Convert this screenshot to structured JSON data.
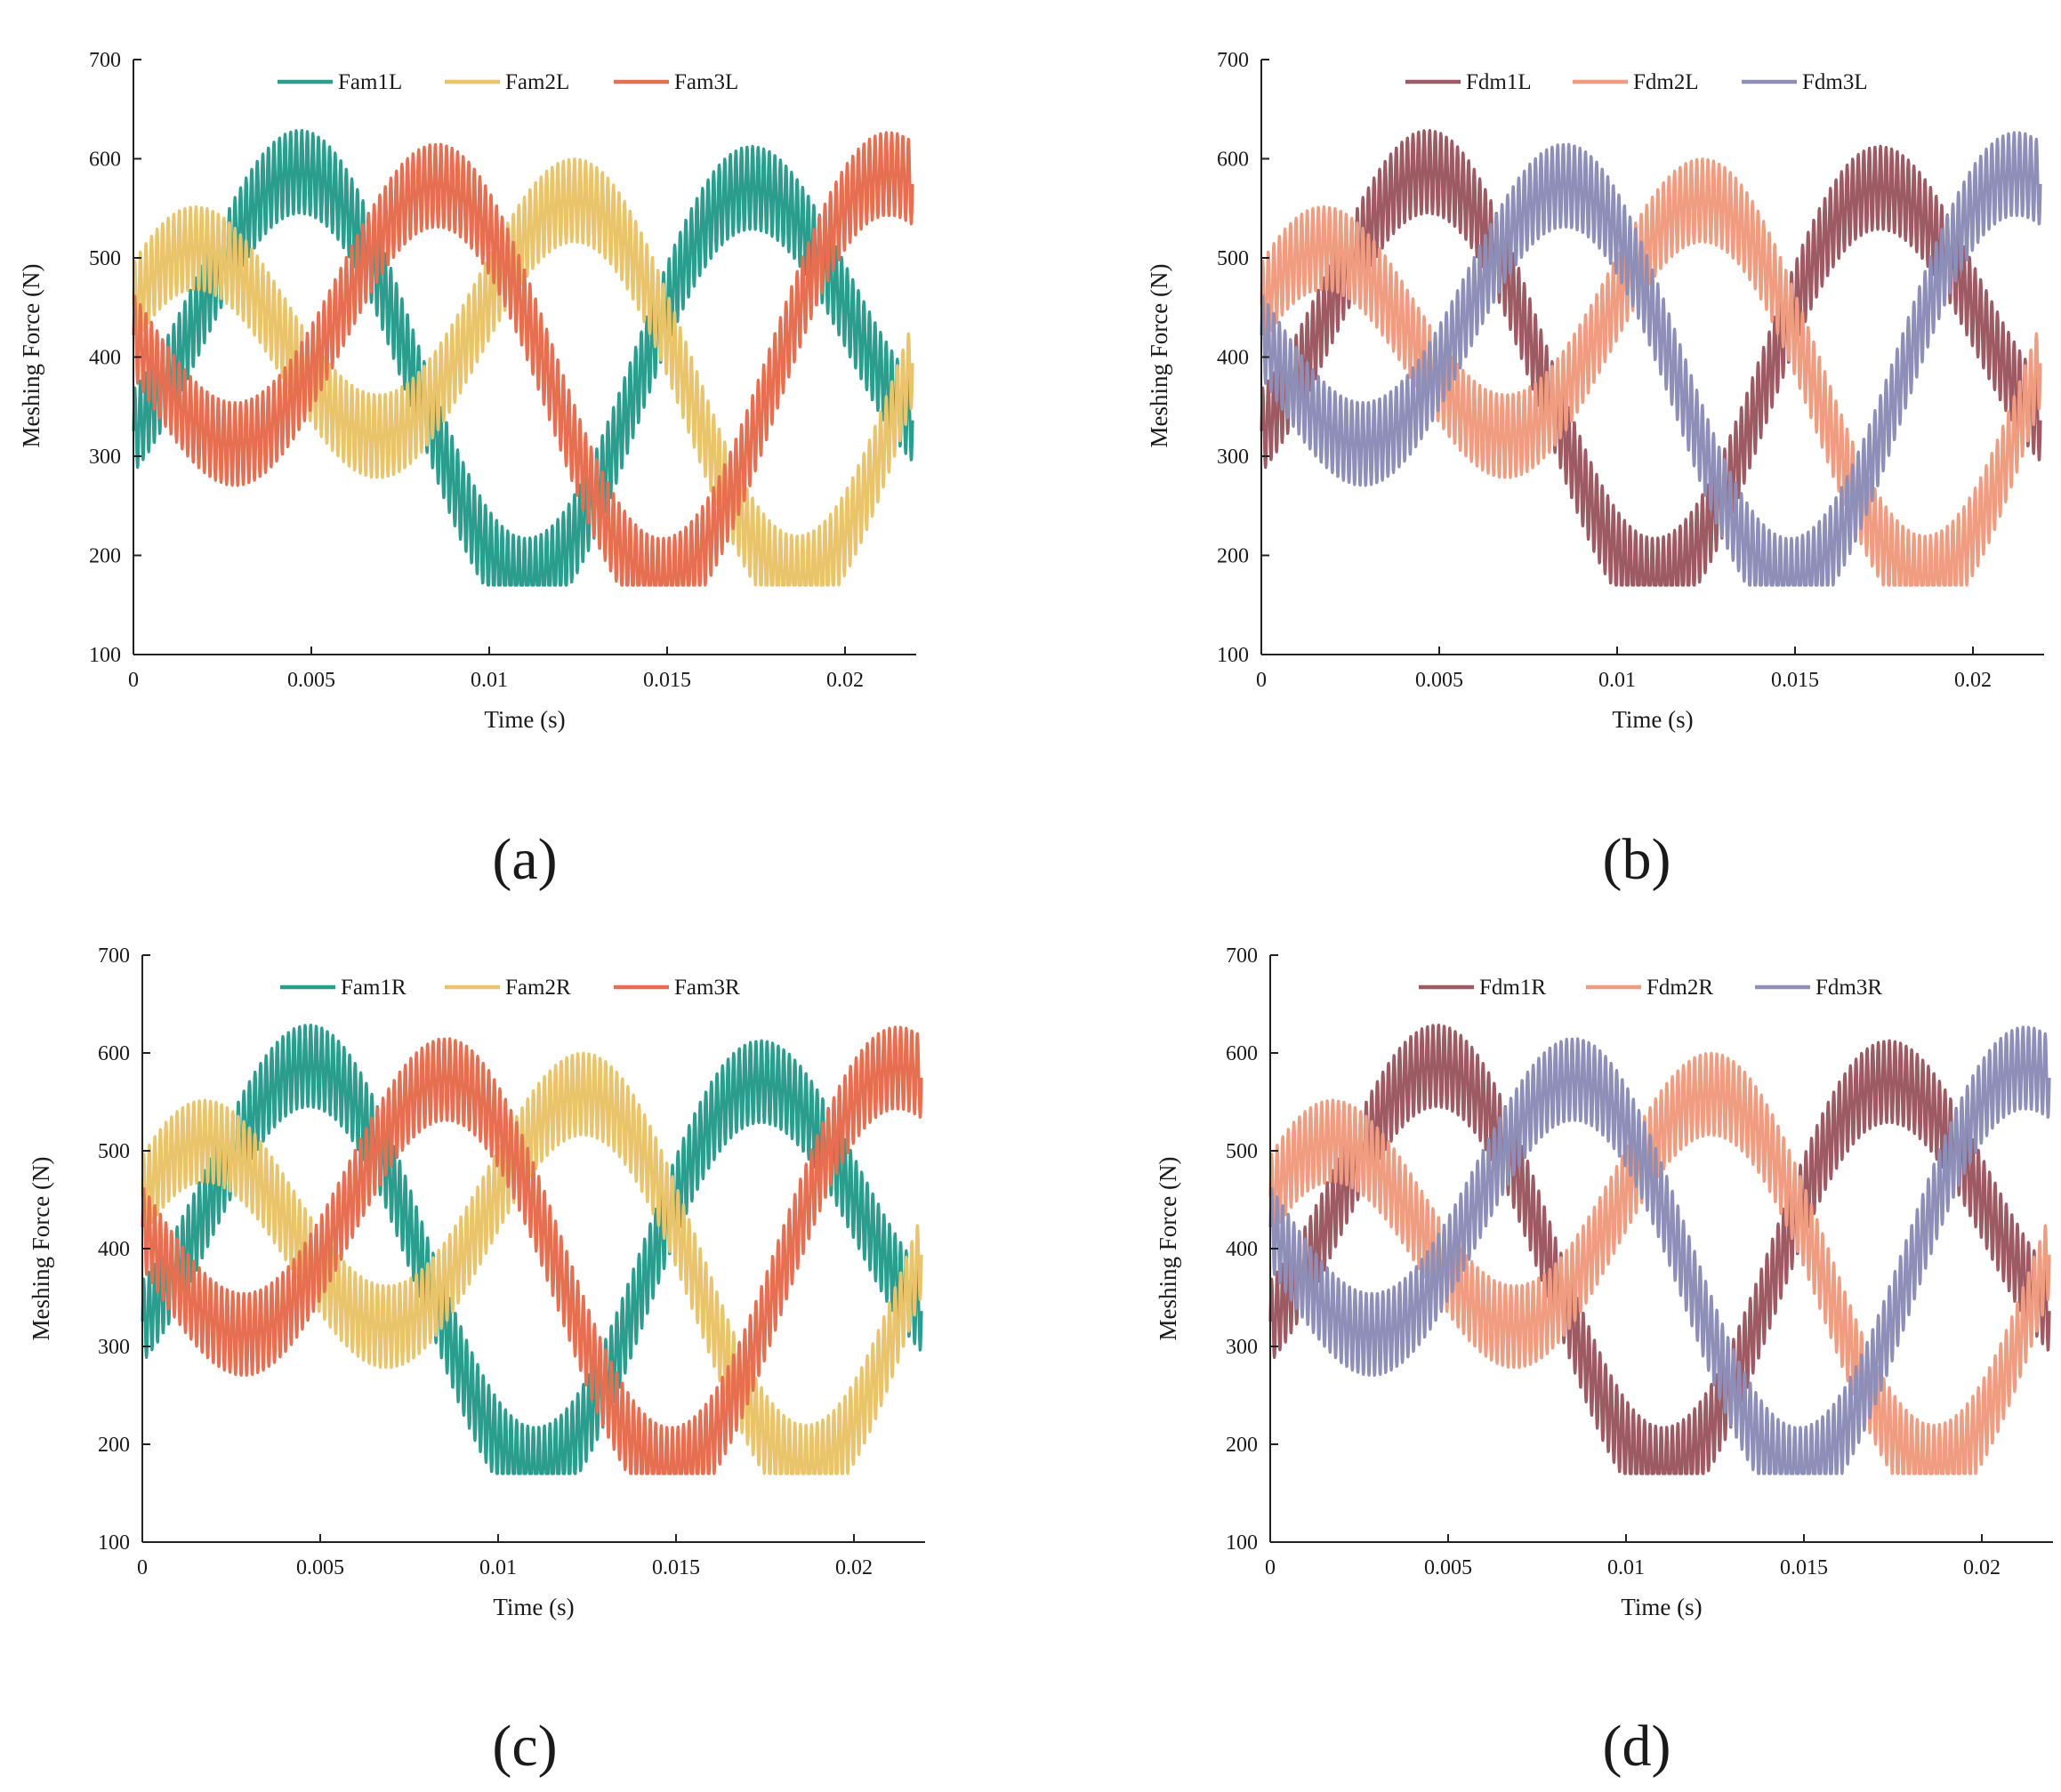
{
  "chart_data": [
    {
      "type": "line",
      "panel_label": "(a)",
      "xlabel": "Time (s)",
      "ylabel": "Meshing Force (N)",
      "xlim": [
        0,
        0.022
      ],
      "ylim": [
        100,
        700
      ],
      "xticks": [
        0,
        0.005,
        0.01,
        0.015,
        0.02
      ],
      "xtick_labels": [
        "0",
        "0.005",
        "0.01",
        "0.015",
        "0.02"
      ],
      "yticks": [
        100,
        200,
        300,
        400,
        500,
        600,
        700
      ],
      "ytick_labels": [
        "100",
        "200",
        "300",
        "400",
        "500",
        "600",
        "700"
      ],
      "legend_position": "top",
      "series": [
        {
          "name": "Fam1L",
          "color": "#2a9d8f",
          "mean": 400,
          "amp": 150,
          "phase_deg": 240,
          "ripple": 42,
          "ripple_cycles": 140
        },
        {
          "name": "Fam2L",
          "color": "#e9c46a",
          "mean": 400,
          "amp": 150,
          "phase_deg": 0,
          "ripple": 42,
          "ripple_cycles": 140
        },
        {
          "name": "Fam3L",
          "color": "#e76f51",
          "mean": 400,
          "amp": 150,
          "phase_deg": 120,
          "ripple": 42,
          "ripple_cycles": 140
        }
      ],
      "x_end": 0.0219,
      "fundamental_period": 0.0117,
      "drift_amp": 75,
      "drift_period": 0.0195,
      "drift_phase_deg": -60
    },
    {
      "type": "line",
      "panel_label": "(b)",
      "xlabel": "Time (s)",
      "ylabel": "Meshing Force (N)",
      "xlim": [
        0,
        0.022
      ],
      "ylim": [
        100,
        700
      ],
      "xticks": [
        0,
        0.005,
        0.01,
        0.015,
        0.02
      ],
      "xtick_labels": [
        "0",
        "0.005",
        "0.01",
        "0.015",
        "0.02"
      ],
      "yticks": [
        100,
        200,
        300,
        400,
        500,
        600,
        700
      ],
      "ytick_labels": [
        "100",
        "200",
        "300",
        "400",
        "500",
        "600",
        "700"
      ],
      "legend_position": "top",
      "series": [
        {
          "name": "Fdm1L",
          "color": "#9e5a63",
          "mean": 400,
          "amp": 150,
          "phase_deg": 240,
          "ripple": 42,
          "ripple_cycles": 140
        },
        {
          "name": "Fdm2L",
          "color": "#f09c80",
          "mean": 400,
          "amp": 150,
          "phase_deg": 0,
          "ripple": 42,
          "ripple_cycles": 140
        },
        {
          "name": "Fdm3L",
          "color": "#8d8fb8",
          "mean": 400,
          "amp": 150,
          "phase_deg": 120,
          "ripple": 42,
          "ripple_cycles": 140
        }
      ],
      "x_end": 0.0219,
      "fundamental_period": 0.0117,
      "drift_amp": 75,
      "drift_period": 0.0195,
      "drift_phase_deg": -60
    },
    {
      "type": "line",
      "panel_label": "(c)",
      "xlabel": "Time (s)",
      "ylabel": "Meshing Force (N)",
      "xlim": [
        0,
        0.022
      ],
      "ylim": [
        100,
        700
      ],
      "xticks": [
        0,
        0.005,
        0.01,
        0.015,
        0.02
      ],
      "xtick_labels": [
        "0",
        "0.005",
        "0.01",
        "0.015",
        "0.02"
      ],
      "yticks": [
        100,
        200,
        300,
        400,
        500,
        600,
        700
      ],
      "ytick_labels": [
        "100",
        "200",
        "300",
        "400",
        "500",
        "600",
        "700"
      ],
      "legend_position": "top",
      "series": [
        {
          "name": "Fam1R",
          "color": "#2a9d8f",
          "mean": 400,
          "amp": 150,
          "phase_deg": 240,
          "ripple": 42,
          "ripple_cycles": 140
        },
        {
          "name": "Fam2R",
          "color": "#e9c46a",
          "mean": 400,
          "amp": 150,
          "phase_deg": 0,
          "ripple": 42,
          "ripple_cycles": 140
        },
        {
          "name": "Fam3R",
          "color": "#e76f51",
          "mean": 400,
          "amp": 150,
          "phase_deg": 120,
          "ripple": 42,
          "ripple_cycles": 140
        }
      ],
      "x_end": 0.0219,
      "fundamental_period": 0.0117,
      "drift_amp": 75,
      "drift_period": 0.0195,
      "drift_phase_deg": -60
    },
    {
      "type": "line",
      "panel_label": "(d)",
      "xlabel": "Time (s)",
      "ylabel": "Meshing Force (N)",
      "xlim": [
        0,
        0.022
      ],
      "ylim": [
        100,
        700
      ],
      "xticks": [
        0,
        0.005,
        0.01,
        0.015,
        0.02
      ],
      "xtick_labels": [
        "0",
        "0.005",
        "0.01",
        "0.015",
        "0.02"
      ],
      "yticks": [
        100,
        200,
        300,
        400,
        500,
        600,
        700
      ],
      "ytick_labels": [
        "100",
        "200",
        "300",
        "400",
        "500",
        "600",
        "700"
      ],
      "legend_position": "top",
      "series": [
        {
          "name": "Fdm1R",
          "color": "#9e5a63",
          "mean": 400,
          "amp": 150,
          "phase_deg": 240,
          "ripple": 42,
          "ripple_cycles": 140
        },
        {
          "name": "Fdm2R",
          "color": "#f09c80",
          "mean": 400,
          "amp": 150,
          "phase_deg": 0,
          "ripple": 42,
          "ripple_cycles": 140
        },
        {
          "name": "Fdm3R",
          "color": "#8d8fb8",
          "mean": 400,
          "amp": 150,
          "phase_deg": 120,
          "ripple": 42,
          "ripple_cycles": 140
        }
      ],
      "x_end": 0.0219,
      "fundamental_period": 0.0117,
      "drift_amp": 75,
      "drift_period": 0.0195,
      "drift_phase_deg": -60
    }
  ]
}
